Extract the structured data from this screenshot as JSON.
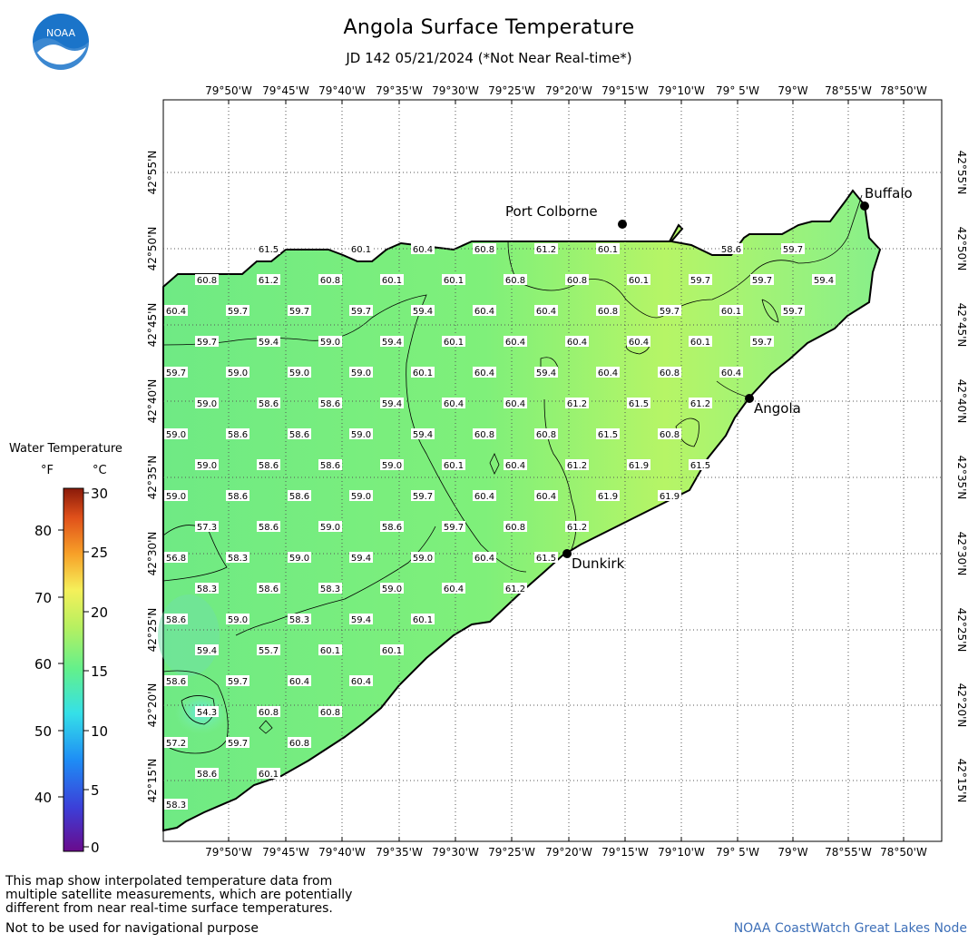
{
  "header": {
    "title": "Angola Surface Temperature",
    "subtitle": "JD 142 05/21/2024 (*Not Near Real-time*)",
    "logo_text": "NOAA"
  },
  "map": {
    "lon_labels": [
      "79°50'W",
      "79°45'W",
      "79°40'W",
      "79°35'W",
      "79°30'W",
      "79°25'W",
      "79°20'W",
      "79°15'W",
      "79°10'W",
      "79° 5'W",
      "79°W",
      "78°55'W",
      "78°50'W"
    ],
    "lat_labels": [
      "42°55'N",
      "42°50'N",
      "42°45'N",
      "42°40'N",
      "42°35'N",
      "42°30'N",
      "42°25'N",
      "42°20'N",
      "42°15'N"
    ],
    "cities": [
      {
        "name": "Port Colborne"
      },
      {
        "name": "Buffalo"
      },
      {
        "name": "Angola"
      },
      {
        "name": "Dunkirk"
      }
    ],
    "water_color": "#7ff07f",
    "grid_values": [
      [
        "",
        "",
        "",
        "61.5",
        "",
        "",
        "60.1",
        "",
        "60.4",
        "",
        "60.8",
        "",
        "61.2",
        "",
        "60.1",
        "",
        "",
        "",
        "58.6",
        "",
        "59.7"
      ],
      [
        "",
        "60.8",
        "",
        "61.2",
        "",
        "60.8",
        "",
        "60.1",
        "",
        "60.1",
        "",
        "60.8",
        "",
        "60.8",
        "",
        "60.1",
        "",
        "59.7",
        "",
        "59.7",
        "",
        "59.4"
      ],
      [
        "60.4",
        "",
        "59.7",
        "",
        "59.7",
        "",
        "59.7",
        "",
        "59.4",
        "",
        "60.4",
        "",
        "60.4",
        "",
        "60.8",
        "",
        "59.7",
        "",
        "60.1",
        "",
        "59.7"
      ],
      [
        "",
        "59.7",
        "",
        "59.4",
        "",
        "59.0",
        "",
        "59.4",
        "",
        "60.1",
        "",
        "60.4",
        "",
        "60.4",
        "",
        "60.4",
        "",
        "60.1",
        "",
        "59.7"
      ],
      [
        "59.7",
        "",
        "59.0",
        "",
        "59.0",
        "",
        "59.0",
        "",
        "60.1",
        "",
        "60.4",
        "",
        "59.4",
        "",
        "60.4",
        "",
        "60.8",
        "",
        "60.4"
      ],
      [
        "",
        "59.0",
        "",
        "58.6",
        "",
        "58.6",
        "",
        "59.4",
        "",
        "60.4",
        "",
        "60.4",
        "",
        "61.2",
        "",
        "61.5",
        "",
        "61.2"
      ],
      [
        "59.0",
        "",
        "58.6",
        "",
        "58.6",
        "",
        "59.0",
        "",
        "59.4",
        "",
        "60.8",
        "",
        "60.8",
        "",
        "61.5",
        "",
        "60.8"
      ],
      [
        "",
        "59.0",
        "",
        "58.6",
        "",
        "58.6",
        "",
        "59.0",
        "",
        "60.1",
        "",
        "60.4",
        "",
        "61.2",
        "",
        "61.9",
        "",
        "61.5"
      ],
      [
        "59.0",
        "",
        "58.6",
        "",
        "58.6",
        "",
        "59.0",
        "",
        "59.7",
        "",
        "60.4",
        "",
        "60.4",
        "",
        "61.9",
        "",
        "61.9"
      ],
      [
        "",
        "57.3",
        "",
        "58.6",
        "",
        "59.0",
        "",
        "58.6",
        "",
        "59.7",
        "",
        "60.8",
        "",
        "61.2"
      ],
      [
        "56.8",
        "",
        "58.3",
        "",
        "59.0",
        "",
        "59.4",
        "",
        "59.0",
        "",
        "60.4",
        "",
        "61.5"
      ],
      [
        "",
        "58.3",
        "",
        "58.6",
        "",
        "58.3",
        "",
        "59.0",
        "",
        "60.4",
        "",
        "61.2"
      ],
      [
        "58.6",
        "",
        "59.0",
        "",
        "58.3",
        "",
        "59.4",
        "",
        "60.1"
      ],
      [
        "",
        "59.4",
        "",
        "55.7",
        "",
        "60.1",
        "",
        "60.1"
      ],
      [
        "58.6",
        "",
        "59.7",
        "",
        "60.4",
        "",
        "60.4"
      ],
      [
        "",
        "54.3",
        "",
        "60.8",
        "",
        "60.8"
      ],
      [
        "57.2",
        "",
        "59.7",
        "",
        "60.8"
      ],
      [
        "",
        "58.6",
        "",
        "60.1"
      ],
      [
        "58.3"
      ]
    ]
  },
  "legend": {
    "title": "Water Temperature",
    "unit_f": "°F",
    "unit_c": "°C",
    "f_ticks": [
      "80",
      "70",
      "60",
      "50",
      "40"
    ],
    "c_ticks": [
      "30",
      "25",
      "20",
      "15",
      "10",
      "5",
      "0"
    ]
  },
  "footer": {
    "note_line1": "This map show interpolated temperature data from",
    "note_line2": "multiple satellite measurements, which are potentially",
    "note_line3": "different from near real-time surface temperatures.",
    "nav_note": "Not to be used for navigational purpose",
    "credit": "NOAA CoastWatch Great Lakes Node"
  }
}
